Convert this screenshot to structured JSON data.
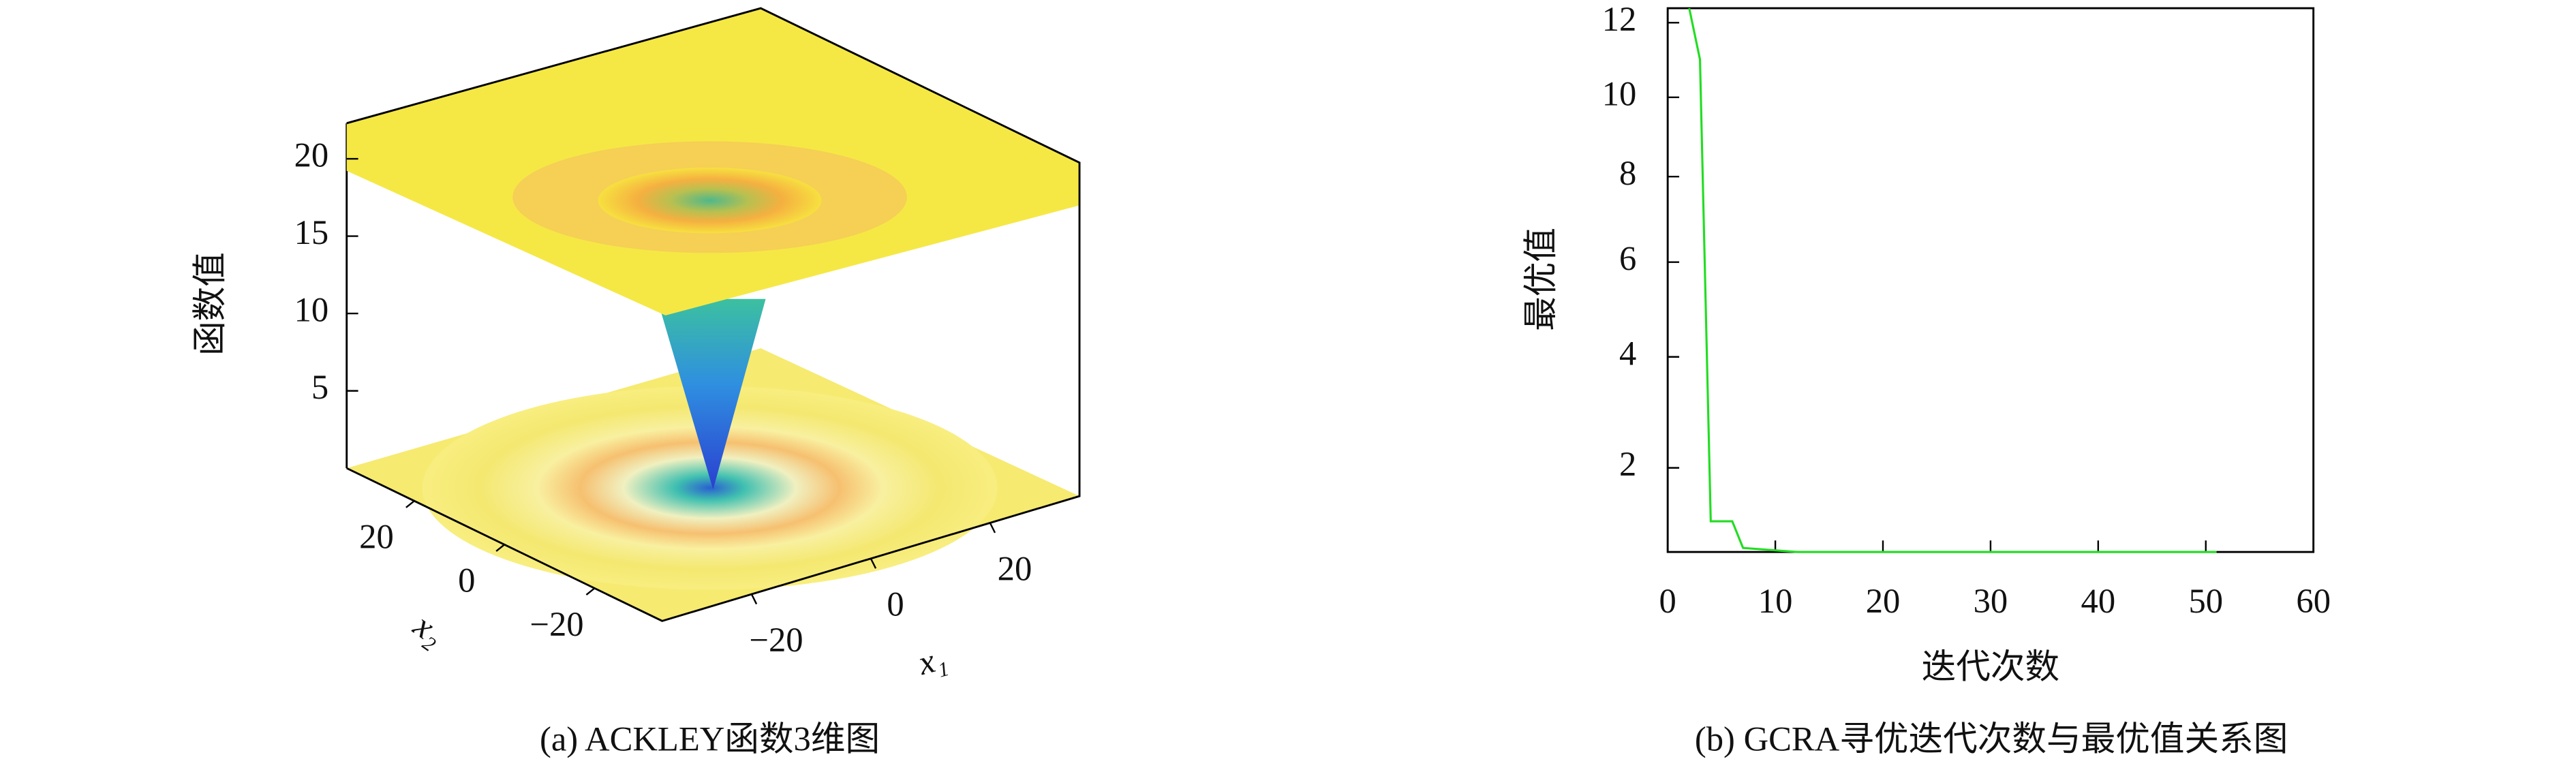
{
  "chart_data": [
    {
      "type": "surface",
      "caption": "(a) ACKLEY函数3维图",
      "zlabel": "函数值",
      "xlabel": "x₁",
      "ylabel": "x₂",
      "xlim": [
        -35,
        35
      ],
      "ylim": [
        -35,
        35
      ],
      "zlim": [
        0,
        22.3
      ],
      "xticks": [
        {
          "value": -20,
          "label": "−20"
        },
        0,
        20
      ],
      "yticks": [
        {
          "value": -20,
          "label": "−20"
        },
        0,
        20
      ],
      "zticks": [
        5,
        10,
        15,
        20
      ]
    },
    {
      "type": "line",
      "caption": "(b) GCRA寻优迭代次数与最优值关系图",
      "xlabel": "迭代次数",
      "ylabel": "最优值",
      "x": [
        2,
        3,
        4,
        6,
        7,
        12,
        51
      ],
      "series": [
        {
          "color": "#22dd22",
          "values": [
            12.4,
            11,
            1.2,
            1.2,
            0.85,
            0.8,
            0.8
          ]
        }
      ],
      "xlim": [
        0,
        60
      ],
      "ylim": [
        0.8,
        12.4
      ],
      "xticks": [
        0,
        10,
        20,
        30,
        40,
        50,
        60
      ],
      "yticks": [
        2,
        4,
        6,
        8,
        10,
        12
      ],
      "yscale": "power",
      "yexponent": 0.7
    }
  ]
}
